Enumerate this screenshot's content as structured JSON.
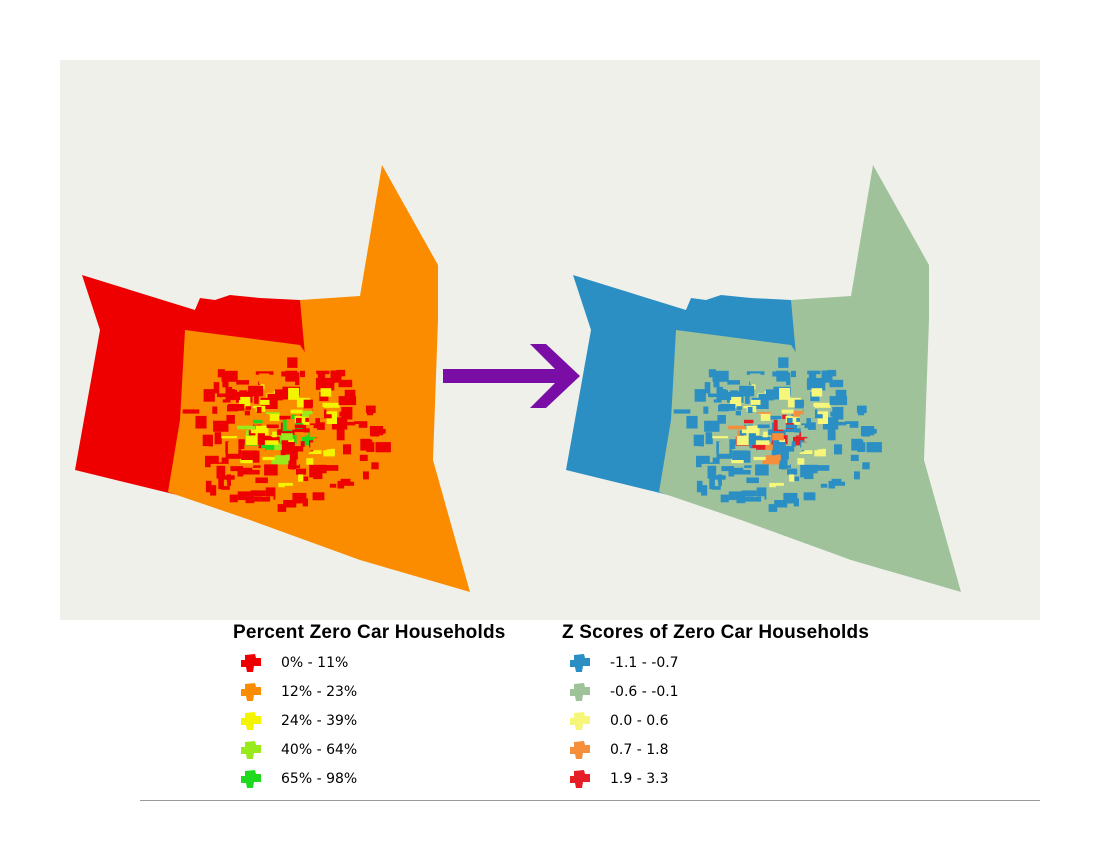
{
  "colors": {
    "panel_bg": "#f0f0ea",
    "arrow": "#7a0da6"
  },
  "legend_percent": {
    "title": "Percent Zero Car Households",
    "items": [
      {
        "label": "0% - 11%",
        "color": "#ee0000"
      },
      {
        "label": "12% - 23%",
        "color": "#fb8c00"
      },
      {
        "label": "24% - 39%",
        "color": "#f4f400"
      },
      {
        "label": "40% - 64%",
        "color": "#98ea1c"
      },
      {
        "label": "65% - 98%",
        "color": "#1ed91e"
      }
    ]
  },
  "legend_zscore": {
    "title": "Z Scores of Zero Car Households",
    "items": [
      {
        "label": "-1.1 - -0.7",
        "color": "#2b8fc4"
      },
      {
        "label": "-0.6 - -0.1",
        "color": "#9fc29a"
      },
      {
        "label": "0.0 - 0.6",
        "color": "#f6f67a"
      },
      {
        "label": "0.7 - 1.8",
        "color": "#f68f3c"
      },
      {
        "label": "1.9 - 3.3",
        "color": "#e51f25"
      }
    ]
  }
}
